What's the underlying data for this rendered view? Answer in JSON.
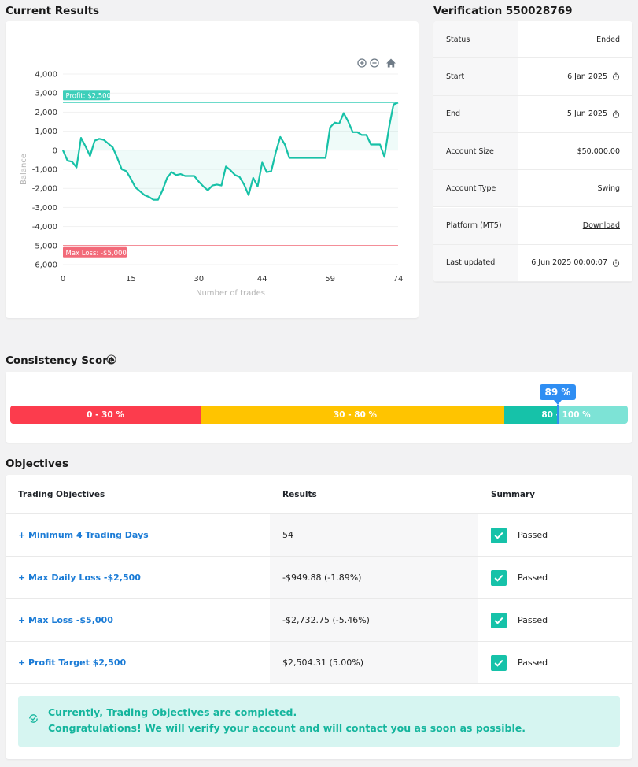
{
  "current_results": {
    "title": "Current Results",
    "toolbar": {
      "zoom_in": "zoom-in-icon",
      "zoom_out": "zoom-out-icon",
      "home": "home-icon"
    }
  },
  "chart_data": {
    "type": "line",
    "xlabel": "Number of trades",
    "ylabel": "Balance",
    "x_ticks": [
      0,
      15,
      30,
      44,
      59,
      74
    ],
    "y_ticks": [
      4000,
      3000,
      2000,
      1000,
      0,
      -1000,
      -2000,
      -3000,
      -4000,
      -5000,
      -6000
    ],
    "xlim": [
      0,
      74
    ],
    "ylim": [
      -6000,
      4000
    ],
    "line_color": "#17c1a7",
    "annotations": [
      {
        "label": "Profit: $2,500",
        "y": 2500,
        "color": "#3dcfba"
      },
      {
        "label": "Max Loss: -$5,000",
        "y": -5000,
        "color": "#f26a79"
      }
    ],
    "series": [
      {
        "x": [
          0,
          1,
          2,
          3,
          4,
          5,
          6,
          7,
          8,
          9,
          10,
          11,
          12,
          13,
          14,
          15,
          16,
          17,
          18,
          19,
          20,
          21,
          22,
          23,
          24,
          25,
          26,
          27,
          28,
          29,
          30,
          31,
          32,
          33,
          34,
          35,
          36,
          37,
          38,
          39,
          40,
          41,
          42,
          43,
          44,
          45,
          46,
          47,
          48,
          49,
          50,
          51,
          52,
          53,
          54,
          55,
          56,
          57,
          58,
          59,
          60,
          61,
          62,
          63,
          64,
          65,
          66,
          67,
          68,
          69,
          70,
          71,
          72,
          73,
          74
        ],
        "values": [
          0,
          -550,
          -600,
          -900,
          650,
          200,
          -300,
          500,
          600,
          550,
          350,
          150,
          -400,
          -1000,
          -1100,
          -1500,
          -1950,
          -2150,
          -2350,
          -2450,
          -2600,
          -2600,
          -2100,
          -1450,
          -1150,
          -1300,
          -1250,
          -1350,
          -1350,
          -1350,
          -1650,
          -1900,
          -2100,
          -1850,
          -1800,
          -1850,
          -850,
          -1050,
          -1300,
          -1400,
          -1800,
          -2350,
          -1450,
          -1900,
          -650,
          -1150,
          -1100,
          -100,
          700,
          300,
          -400,
          -400,
          -400,
          -400,
          -400,
          -400,
          -400,
          -400,
          -400,
          1200,
          1450,
          1400,
          1950,
          1500,
          950,
          950,
          800,
          800,
          300,
          300,
          300,
          -350,
          1200,
          2400,
          2500
        ]
      }
    ]
  },
  "verification": {
    "title": "Verification 550028769",
    "rows": [
      {
        "label": "Status",
        "value": "Ended",
        "clock": false
      },
      {
        "label": "Start",
        "value": "6 Jan 2025",
        "clock": true
      },
      {
        "label": "End",
        "value": "5 Jun 2025",
        "clock": true
      },
      {
        "label": "Account Size",
        "value": "$50,000.00",
        "clock": false
      },
      {
        "label": "Account Type",
        "value": "Swing",
        "clock": false
      },
      {
        "label": "Platform (MT5)",
        "value": "Download",
        "clock": false,
        "link": true
      },
      {
        "label": "Last updated",
        "value": "6 Jun 2025 00:00:07",
        "clock": true
      }
    ]
  },
  "consistency": {
    "title": "Consistency Score",
    "score_label": "89 %",
    "score": 89,
    "segments": [
      {
        "label": "0 - 30 %",
        "color": "#fc3c4d"
      },
      {
        "label": "30 - 80 %",
        "color": "#ffc400"
      },
      {
        "label": "80 - 100 %",
        "color": "#16c2a9"
      }
    ]
  },
  "objectives": {
    "title": "Objectives",
    "headers": [
      "Trading Objectives",
      "Results",
      "Summary"
    ],
    "rows": [
      {
        "name": "+ Minimum 4 Trading Days",
        "result": "54",
        "summary": "Passed"
      },
      {
        "name": "+ Max Daily Loss -$2,500",
        "result": "-$949.88 (-1.89%)",
        "summary": "Passed"
      },
      {
        "name": "+ Max Loss -$5,000",
        "result": "-$2,732.75 (-5.46%)",
        "summary": "Passed"
      },
      {
        "name": "+ Profit Target $2,500",
        "result": "$2,504.31 (5.00%)",
        "summary": "Passed"
      }
    ],
    "notice_line1": "Currently, Trading Objectives are completed.",
    "notice_line2": "Congratulations! We will verify your account and will contact you as soon as possible."
  }
}
